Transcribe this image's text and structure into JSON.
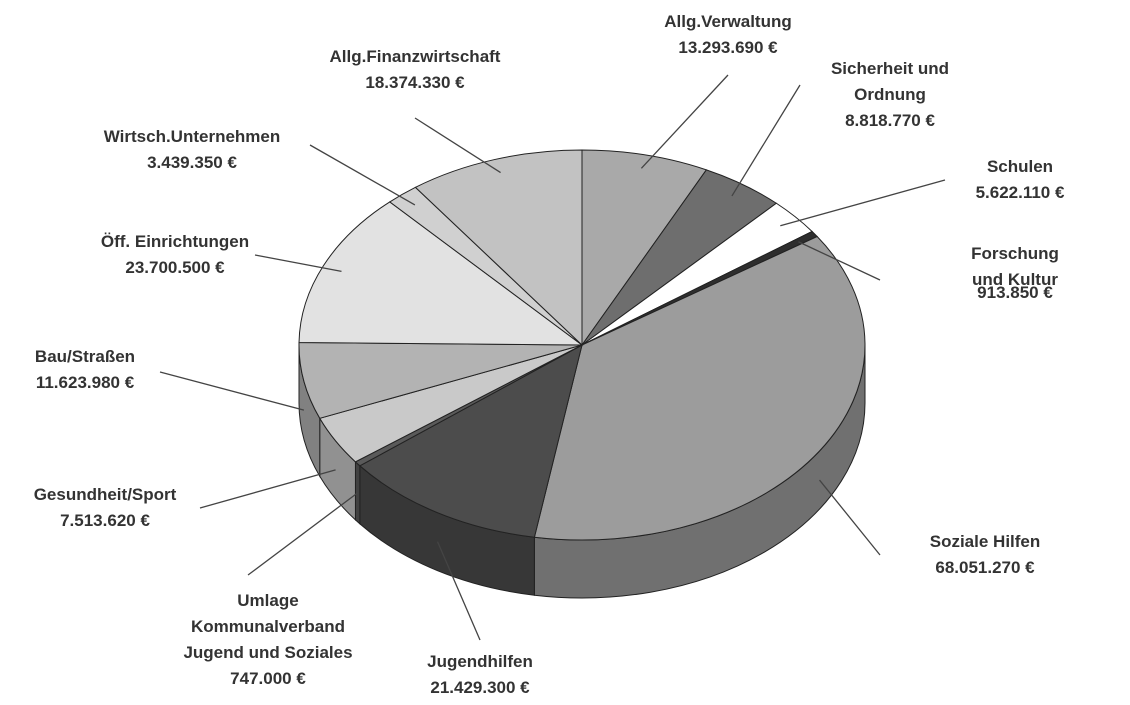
{
  "chart_data": {
    "type": "pie",
    "categories": [
      "Allg.Verwaltung",
      "Sicherheit und\nOrdnung",
      "Schulen",
      "Forschung und Kultur",
      "Soziale Hilfen",
      "Jugendhilfen",
      "Umlage\nKommunalverband\nJugend und Soziales",
      "Gesundheit/Sport",
      "Bau/Straßen",
      "Öff. Einrichtungen",
      "Wirtsch.Unternehmen",
      "Allg.Finanzwirtschaft"
    ],
    "values": [
      13293690,
      8818770,
      5622110,
      913850,
      68051270,
      21429300,
      747000,
      7513620,
      11623980,
      23700500,
      3439350,
      18374330
    ],
    "value_labels": [
      "13.293.690 €",
      "8.818.770 €",
      "5.622.110 €",
      "913.850 €",
      "68.051.270 €",
      "21.429.300 €",
      "747.000 €",
      "7.513.620 €",
      "11.623.980 €",
      "23.700.500 €",
      "3.439.350 €",
      "18.374.330 €"
    ],
    "colors": [
      "#a9a9a9",
      "#6e6e6e",
      "#ffffff",
      "#2e2e2e",
      "#9c9c9c",
      "#4c4c4c",
      "#5a5a5a",
      "#c9c9c9",
      "#b3b3b3",
      "#e2e2e2",
      "#d0d0d0",
      "#c2c2c2"
    ]
  }
}
